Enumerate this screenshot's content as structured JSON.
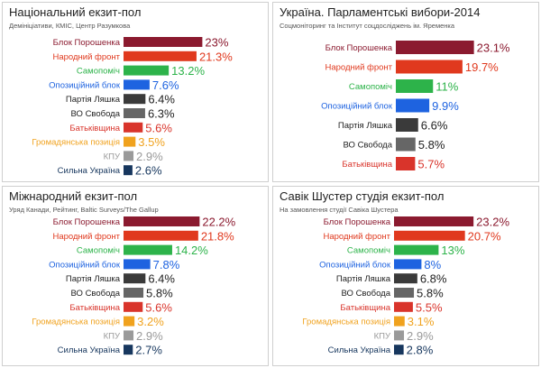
{
  "chart_data": [
    {
      "type": "bar",
      "title": "Національний екзит-пол",
      "subtitle": "Демініціативи, КМІС, Центр Разумкова",
      "categories": [
        "Блок Порошенка",
        "Народний фронт",
        "Самопоміч",
        "Опозиційний блок",
        "Партія Ляшка",
        "ВО Свобода",
        "Батьківщина",
        "Громадянська позиція",
        "КПУ",
        "Сильна Україна"
      ],
      "values": [
        23,
        21.3,
        13.2,
        7.6,
        6.4,
        6.3,
        5.6,
        3.5,
        2.9,
        2.6
      ],
      "value_labels": [
        "23%",
        "21.3%",
        "13.2%",
        "7.6%",
        "6.4%",
        "6.3%",
        "5.6%",
        "3.5%",
        "2.9%",
        "2.6%"
      ],
      "colors": [
        "#8b1a2f",
        "#e0391e",
        "#2db34a",
        "#1e63e0",
        "#3a3a3a",
        "#666666",
        "#d9342b",
        "#f0a21e",
        "#9a9a9a",
        "#17375e"
      ]
    },
    {
      "type": "bar",
      "title": "Україна. Парламентські вибори-2014",
      "subtitle": "Соцмоніторинг та Інститут соцдосліджень ім. Яременка",
      "categories": [
        "Блок Порошенка",
        "Народний фронт",
        "Самопоміч",
        "Опозиційний блок",
        "Партія Ляшка",
        "ВО Свобода",
        "Батьківщина"
      ],
      "values": [
        23.1,
        19.7,
        11,
        9.9,
        6.6,
        5.8,
        5.7
      ],
      "value_labels": [
        "23.1%",
        "19.7%",
        "11%",
        "9.9%",
        "6.6%",
        "5.8%",
        "5.7%"
      ],
      "colors": [
        "#8b1a2f",
        "#e0391e",
        "#2db34a",
        "#1e63e0",
        "#3a3a3a",
        "#666666",
        "#d9342b"
      ]
    },
    {
      "type": "bar",
      "title": "Міжнародний екзит-пол",
      "subtitle": "Уряд Канади, Рейтинг, Baltic Surveys/The Gallup",
      "categories": [
        "Блок Порошенка",
        "Народний фронт",
        "Самопоміч",
        "Опозиційний блок",
        "Партія Ляшка",
        "ВО Свобода",
        "Батьківщина",
        "Громадянська позиція",
        "КПУ",
        "Сильна Україна"
      ],
      "values": [
        22.2,
        21.8,
        14.2,
        7.8,
        6.4,
        5.8,
        5.6,
        3.2,
        2.9,
        2.7
      ],
      "value_labels": [
        "22.2%",
        "21.8%",
        "14.2%",
        "7.8%",
        "6.4%",
        "5.8%",
        "5.6%",
        "3.2%",
        "2.9%",
        "2.7%"
      ],
      "colors": [
        "#8b1a2f",
        "#e0391e",
        "#2db34a",
        "#1e63e0",
        "#3a3a3a",
        "#666666",
        "#d9342b",
        "#f0a21e",
        "#9a9a9a",
        "#17375e"
      ]
    },
    {
      "type": "bar",
      "title": "Савік Шустер студія екзит-пол",
      "subtitle": "На замовлення студії Савіка Шустера",
      "categories": [
        "Блок Порошенка",
        "Народний фронт",
        "Самопоміч",
        "Опозиційний блок",
        "Партія Ляшка",
        "ВО Свобода",
        "Батьківщина",
        "Громадянська позиція",
        "КПУ",
        "Сильна Україна"
      ],
      "values": [
        23.2,
        20.7,
        13,
        8,
        6.8,
        5.8,
        5.5,
        3.1,
        2.9,
        2.8
      ],
      "value_labels": [
        "23.2%",
        "20.7%",
        "13%",
        "8%",
        "6.8%",
        "5.8%",
        "5.5%",
        "3.1%",
        "2.9%",
        "2.8%"
      ],
      "colors": [
        "#8b1a2f",
        "#e0391e",
        "#2db34a",
        "#1e63e0",
        "#3a3a3a",
        "#666666",
        "#d9342b",
        "#f0a21e",
        "#9a9a9a",
        "#17375e"
      ]
    }
  ]
}
